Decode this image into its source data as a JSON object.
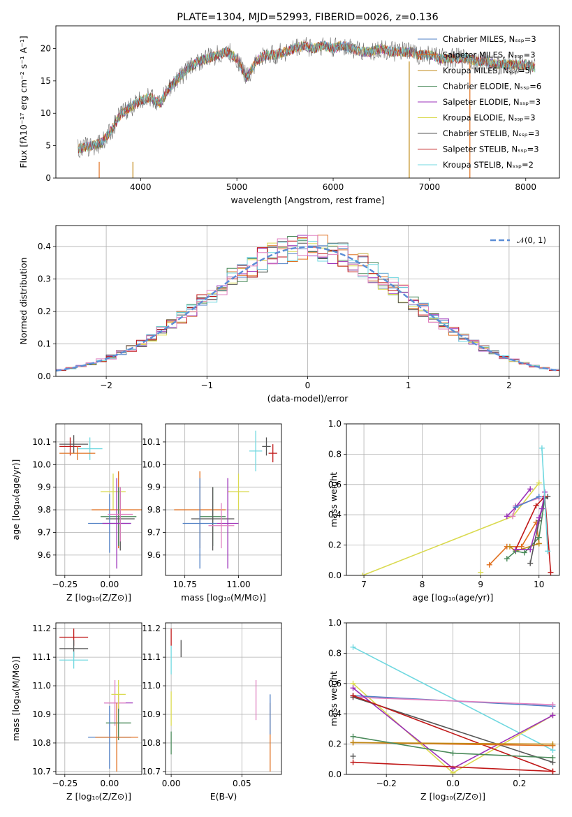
{
  "colors": {
    "Chabrier MILES": "#4f7fc4",
    "Salpeter MILES": "#e07020",
    "Kroupa MILES": "#c08a18",
    "Chabrier ELODIE": "#4a8a5a",
    "Salpeter ELODIE": "#9b30b8",
    "Kroupa ELODIE": "#dada50",
    "Chabrier STELIB": "#555555",
    "Salpeter STELIB": "#c01818",
    "Kroupa STELIB": "#70d8e0",
    "Salpeter MILES 2": "#e07020",
    "pink": "#e080c0",
    "normal": "#5b8dd6"
  },
  "chart_data": [
    {
      "id": "spectrum",
      "type": "line",
      "title": "PLATE=1304, MJD=52993, FIBERID=0026, z=0.136",
      "xlabel": "wavelength [Angstrom, rest frame]",
      "ylabel": "Flux [fλ10⁻¹⁷ erg cm⁻² s⁻¹ A⁻¹]",
      "xlim": [
        3120,
        8350
      ],
      "ylim": [
        0,
        23.5
      ],
      "xticks": [
        4000,
        5000,
        6000,
        7000,
        8000
      ],
      "yticks": [
        0,
        5,
        10,
        15,
        20
      ],
      "xtick_labels": [
        "4000",
        "5000",
        "6000",
        "7000",
        "8000"
      ],
      "ytick_labels": [
        "0",
        "5",
        "10",
        "15",
        "20"
      ],
      "grid": false,
      "legend_position": "top-right",
      "series": [
        {
          "name": "Chabrier MILES, Nₛₛₚ=3",
          "key": "Chabrier MILES"
        },
        {
          "name": "Salpeter MILES, Nₛₛₚ=3",
          "key": "Salpeter MILES"
        },
        {
          "name": "Kroupa MILES, Nₛₛₚ=5",
          "key": "Kroupa MILES"
        },
        {
          "name": "Chabrier ELODIE, Nₛₛₚ=6",
          "key": "Chabrier ELODIE"
        },
        {
          "name": "Salpeter ELODIE, Nₛₛₚ=3",
          "key": "Salpeter ELODIE"
        },
        {
          "name": "Kroupa ELODIE, Nₛₛₚ=3",
          "key": "Kroupa ELODIE"
        },
        {
          "name": "Chabrier STELIB, Nₛₛₚ=3",
          "key": "Chabrier STELIB"
        },
        {
          "name": "Salpeter STELIB, Nₛₛₚ=3",
          "key": "Salpeter STELIB"
        },
        {
          "name": "Kroupa STELIB, Nₛₛₚ=2",
          "key": "Kroupa STELIB"
        }
      ],
      "spectrum_envelope": {
        "x": [
          3350,
          3500,
          3600,
          3700,
          3800,
          3900,
          4000,
          4100,
          4200,
          4300,
          4400,
          4500,
          4600,
          4700,
          4800,
          4900,
          5000,
          5100,
          5200,
          5300,
          5400,
          5500,
          5600,
          5700,
          5800,
          5900,
          6000,
          6100,
          6200,
          6300,
          6400,
          6500,
          6600,
          6700,
          6800,
          6900,
          7000,
          7100,
          7200,
          7300,
          7400,
          7500,
          7600,
          7700,
          7800,
          7900,
          8000,
          8100
        ],
        "y": [
          4.5,
          5.0,
          5.5,
          7.5,
          10.0,
          11.0,
          12.0,
          12.5,
          11.5,
          14.0,
          15.5,
          17.0,
          18.0,
          18.5,
          19.0,
          19.5,
          18.5,
          15.5,
          18.0,
          19.0,
          19.0,
          19.5,
          20.0,
          20.5,
          20.0,
          20.5,
          20.0,
          20.5,
          20.0,
          19.5,
          19.5,
          20.0,
          19.5,
          19.5,
          19.5,
          19.0,
          19.0,
          18.5,
          18.5,
          18.5,
          18.5,
          18.0,
          18.0,
          17.5,
          17.5,
          17.5,
          17.5,
          17.0
        ]
      },
      "drops": [
        {
          "x": 3570,
          "key": "Salpeter MILES",
          "y_from": 2.5,
          "y_to": 0
        },
        {
          "x": 3920,
          "key": "Kroupa MILES",
          "y_from": 2.5,
          "y_to": 0
        },
        {
          "x": 6790,
          "key": "Kroupa MILES",
          "y_from": 18,
          "y_to": 0
        },
        {
          "x": 7420,
          "key": "Salpeter MILES",
          "y_from": 18,
          "y_to": 0
        }
      ]
    },
    {
      "id": "residuals",
      "type": "bar",
      "xlabel": "(data-model)/error",
      "ylabel": "Normed distribution",
      "xlim": [
        -2.5,
        2.5
      ],
      "ylim": [
        0,
        0.465
      ],
      "xticks": [
        -2,
        -1,
        0,
        1,
        2
      ],
      "yticks": [
        0.0,
        0.1,
        0.2,
        0.3,
        0.4
      ],
      "xtick_labels": [
        "−2",
        "−1",
        "0",
        "1",
        "2"
      ],
      "ytick_labels": [
        "0.0",
        "0.1",
        "0.2",
        "0.3",
        "0.4"
      ],
      "grid": true,
      "legend_position": "top-right",
      "legend_label": "𝒩(0, 1)",
      "bin_width": 0.1,
      "histogram_series": [
        "Chabrier MILES",
        "Salpeter MILES",
        "Chabrier ELODIE",
        "Salpeter ELODIE",
        "Kroupa ELODIE",
        "Chabrier STELIB",
        "Salpeter STELIB",
        "Kroupa STELIB",
        "pink"
      ]
    },
    {
      "id": "age-vs-Z",
      "type": "scatter",
      "xlabel": "Z [log₁₀(Z/Z⊙)]",
      "ylabel": "age  [log₁₀(age/yr)]",
      "xlim": [
        -0.3,
        0.18
      ],
      "ylim": [
        9.51,
        10.18
      ],
      "xticks": [
        -0.25,
        0.0
      ],
      "yticks": [
        9.6,
        9.7,
        9.8,
        9.9,
        10.0,
        10.1
      ],
      "xtick_labels": [
        "−0.25",
        "0.00"
      ],
      "ytick_labels": [
        "9.6",
        "9.7",
        "9.8",
        "9.9",
        "10.0",
        "10.1"
      ],
      "grid": true,
      "crosses": [
        {
          "key": "Salpeter STELIB",
          "x": -0.22,
          "xerr": 0.06,
          "y": 10.08,
          "yerr": 0.04
        },
        {
          "key": "Chabrier STELIB",
          "x": -0.2,
          "xerr": 0.08,
          "y": 10.09,
          "yerr": 0.04
        },
        {
          "key": "Kroupa STELIB",
          "x": -0.11,
          "xerr": 0.07,
          "y": 10.07,
          "yerr": 0.05
        },
        {
          "key": "Salpeter MILES",
          "x": -0.18,
          "xerr": 0.1,
          "y": 10.05,
          "yerr": 0.03
        },
        {
          "key": "Kroupa ELODIE",
          "x": 0.02,
          "xerr": 0.07,
          "y": 9.88,
          "yerr": 0.08
        },
        {
          "key": "Salpeter MILES",
          "x": 0.05,
          "xerr": 0.15,
          "y": 9.8,
          "yerr": 0.17
        },
        {
          "key": "Chabrier ELODIE",
          "x": 0.05,
          "xerr": 0.1,
          "y": 9.77,
          "yerr": 0.13
        },
        {
          "key": "Chabrier STELIB",
          "x": 0.06,
          "xerr": 0.08,
          "y": 9.76,
          "yerr": 0.14
        },
        {
          "key": "Chabrier MILES",
          "x": 0.0,
          "xerr": 0.12,
          "y": 9.74,
          "yerr": 0.13
        },
        {
          "key": "Salpeter ELODIE",
          "x": 0.04,
          "xerr": 0.08,
          "y": 9.74,
          "yerr": 0.2
        },
        {
          "key": "pink",
          "x": 0.06,
          "xerr": 0.07,
          "y": 9.78,
          "yerr": 0.12
        }
      ]
    },
    {
      "id": "age-vs-mass",
      "type": "scatter",
      "xlabel": "mass [log₁₀(M/M⊙)]",
      "ylabel": "",
      "xlim": [
        10.66,
        11.2
      ],
      "ylim": [
        9.51,
        10.18
      ],
      "xticks": [
        10.75,
        11.0
      ],
      "yticks": [
        9.6,
        9.7,
        9.8,
        9.9,
        10.0,
        10.1
      ],
      "xtick_labels": [
        "10.75",
        "11.00"
      ],
      "ytick_labels": [
        "9.6",
        "9.7",
        "9.8",
        "9.9",
        "10.0",
        "10.1"
      ],
      "grid": true,
      "crosses": [
        {
          "key": "Salpeter STELIB",
          "x": 11.16,
          "xerr": 0.02,
          "y": 10.05,
          "yerr": 0.04
        },
        {
          "key": "Chabrier STELIB",
          "x": 11.13,
          "xerr": 0.02,
          "y": 10.08,
          "yerr": 0.04
        },
        {
          "key": "Kroupa STELIB",
          "x": 11.08,
          "xerr": 0.03,
          "y": 10.06,
          "yerr": 0.09
        },
        {
          "key": "Kroupa ELODIE",
          "x": 11.0,
          "xerr": 0.05,
          "y": 9.88,
          "yerr": 0.08
        },
        {
          "key": "Salpeter MILES",
          "x": 10.82,
          "xerr": 0.12,
          "y": 9.8,
          "yerr": 0.17
        },
        {
          "key": "Chabrier ELODIE",
          "x": 10.88,
          "xerr": 0.06,
          "y": 9.77,
          "yerr": 0.13
        },
        {
          "key": "Chabrier STELIB",
          "x": 10.88,
          "xerr": 0.1,
          "y": 9.76,
          "yerr": 0.14
        },
        {
          "key": "Chabrier MILES",
          "x": 10.82,
          "xerr": 0.08,
          "y": 9.74,
          "yerr": 0.2
        },
        {
          "key": "Salpeter ELODIE",
          "x": 10.95,
          "xerr": 0.05,
          "y": 9.74,
          "yerr": 0.2
        },
        {
          "key": "pink",
          "x": 10.92,
          "xerr": 0.06,
          "y": 9.73,
          "yerr": 0.1
        }
      ]
    },
    {
      "id": "weight-vs-age",
      "type": "line",
      "xlabel": "age  [log₁₀(age/yr)]",
      "ylabel": "mass weight",
      "xlim": [
        6.7,
        10.35
      ],
      "ylim": [
        0,
        1.0
      ],
      "xticks": [
        7,
        8,
        9,
        10
      ],
      "yticks": [
        0.0,
        0.2,
        0.4,
        0.6,
        0.8,
        1.0
      ],
      "xtick_labels": [
        "7",
        "8",
        "9",
        "10"
      ],
      "ytick_labels": [
        "0.0",
        "0.2",
        "0.4",
        "0.6",
        "0.8",
        "1.0"
      ],
      "grid": true,
      "series": [
        {
          "key": "Kroupa ELODIE",
          "x": [
            6.98,
            9.55,
            10.0
          ],
          "y": [
            0.0,
            0.39,
            0.61
          ]
        },
        {
          "key": "pink",
          "x": [
            9.55,
            9.6,
            10.0
          ],
          "y": [
            0.39,
            0.46,
            0.51
          ]
        },
        {
          "key": "Salpeter ELODIE",
          "x": [
            9.45,
            9.6,
            9.85
          ],
          "y": [
            0.39,
            0.45,
            0.57
          ]
        },
        {
          "key": "Chabrier MILES",
          "x": [
            9.6,
            10.0
          ],
          "y": [
            0.45,
            0.52
          ]
        },
        {
          "key": "Salpeter MILES",
          "x": [
            9.15,
            9.45,
            9.7,
            9.95,
            10.0
          ],
          "y": [
            0.07,
            0.19,
            0.19,
            0.35,
            0.21
          ]
        },
        {
          "key": "Kroupa MILES",
          "x": [
            9.5,
            9.6,
            10.0
          ],
          "y": [
            0.19,
            0.16,
            0.21
          ]
        },
        {
          "key": "Chabrier ELODIE",
          "x": [
            9.45,
            9.6,
            9.75,
            10.0,
            10.1
          ],
          "y": [
            0.11,
            0.16,
            0.15,
            0.25,
            0.51
          ]
        },
        {
          "key": "Chabrier STELIB",
          "x": [
            9.85,
            10.0,
            10.1,
            10.15
          ],
          "y": [
            0.08,
            0.36,
            0.51,
            0.52
          ]
        },
        {
          "key": "Salpeter STELIB",
          "x": [
            9.6,
            9.95,
            10.1,
            10.2
          ],
          "y": [
            0.17,
            0.46,
            0.52,
            0.02
          ]
        },
        {
          "key": "Salpeter ELODIE",
          "x": [
            9.6,
            9.85,
            10.0,
            10.05,
            10.1
          ],
          "y": [
            0.17,
            0.17,
            0.38,
            0.44,
            0.55
          ]
        },
        {
          "key": "Kroupa STELIB",
          "x": [
            10.05,
            10.15
          ],
          "y": [
            0.84,
            0.16
          ]
        },
        {
          "key": "Kroupa ELODIE",
          "x": [
            9.0
          ],
          "y": [
            0.02
          ]
        }
      ]
    },
    {
      "id": "mass-vs-Z",
      "type": "scatter",
      "xlabel": "Z [log₁₀(Z/Z⊙)]",
      "ylabel": "mass [log₁₀(M/M⊙)]",
      "xlim": [
        -0.3,
        0.18
      ],
      "ylim": [
        10.69,
        11.22
      ],
      "xticks": [
        -0.25,
        0.0
      ],
      "yticks": [
        10.7,
        10.8,
        10.9,
        11.0,
        11.1,
        11.2
      ],
      "xtick_labels": [
        "−0.25",
        "0.00"
      ],
      "ytick_labels": [
        "10.7",
        "10.8",
        "10.9",
        "11.0",
        "11.1",
        "11.2"
      ],
      "grid": true,
      "crosses": [
        {
          "key": "Salpeter STELIB",
          "x": -0.2,
          "xerr": 0.08,
          "y": 11.17,
          "yerr": 0.03
        },
        {
          "key": "Chabrier STELIB",
          "x": -0.2,
          "xerr": 0.08,
          "y": 11.13,
          "yerr": 0.03
        },
        {
          "key": "Kroupa STELIB",
          "x": -0.2,
          "xerr": 0.08,
          "y": 11.09,
          "yerr": 0.03
        },
        {
          "key": "Salpeter ELODIE",
          "x": 0.05,
          "xerr": 0.08,
          "y": 10.94,
          "yerr": 0.03
        },
        {
          "key": "pink",
          "x": 0.03,
          "xerr": 0.06,
          "y": 10.94,
          "yerr": 0.08
        },
        {
          "key": "Chabrier ELODIE",
          "x": 0.05,
          "xerr": 0.07,
          "y": 10.87,
          "yerr": 0.06
        },
        {
          "key": "Chabrier MILES",
          "x": 0.0,
          "xerr": 0.12,
          "y": 10.82,
          "yerr": 0.11
        },
        {
          "key": "Salpeter MILES",
          "x": 0.04,
          "xerr": 0.12,
          "y": 10.82,
          "yerr": 0.12
        },
        {
          "key": "Kroupa ELODIE",
          "x": 0.05,
          "xerr": 0.04,
          "y": 10.97,
          "yerr": 0.05
        }
      ]
    },
    {
      "id": "mass-vs-EBV",
      "type": "scatter",
      "xlabel": "E(B-V)",
      "ylabel": "",
      "xlim": [
        -0.004,
        0.078
      ],
      "ylim": [
        10.69,
        11.22
      ],
      "xticks": [
        0.0,
        0.05
      ],
      "yticks": [
        10.7,
        10.8,
        10.9,
        11.0,
        11.1,
        11.2
      ],
      "xtick_labels": [
        "0.00",
        "0.05"
      ],
      "ytick_labels": [
        "10.7",
        "10.8",
        "10.9",
        "11.0",
        "11.1",
        "11.2"
      ],
      "grid": true,
      "crosses": [
        {
          "key": "Salpeter STELIB",
          "x": 0.0,
          "xerr": 0.0,
          "y": 11.17,
          "yerr": 0.03
        },
        {
          "key": "Chabrier STELIB",
          "x": 0.007,
          "xerr": 0.0,
          "y": 11.13,
          "yerr": 0.03
        },
        {
          "key": "Kroupa STELIB",
          "x": 0.0,
          "xerr": 0.0,
          "y": 11.09,
          "yerr": 0.05
        },
        {
          "key": "Kroupa ELODIE",
          "x": 0.0,
          "xerr": 0.0,
          "y": 10.92,
          "yerr": 0.06
        },
        {
          "key": "Chabrier ELODIE",
          "x": 0.0,
          "xerr": 0.0,
          "y": 10.8,
          "yerr": 0.04
        },
        {
          "key": "pink",
          "x": 0.06,
          "xerr": 0.0,
          "y": 10.95,
          "yerr": 0.07
        },
        {
          "key": "Salpeter MILES",
          "x": 0.07,
          "xerr": 0.0,
          "y": 10.82,
          "yerr": 0.12
        },
        {
          "key": "Chabrier MILES",
          "x": 0.07,
          "xerr": 0.0,
          "y": 10.9,
          "yerr": 0.07
        }
      ]
    },
    {
      "id": "weight-vs-Z",
      "type": "line",
      "xlabel": "Z [log₁₀(Z/Z⊙)]",
      "ylabel": "mass weight",
      "xlim": [
        -0.32,
        0.32
      ],
      "ylim": [
        0,
        1.0
      ],
      "xticks": [
        -0.2,
        0.0,
        0.2
      ],
      "yticks": [
        0.0,
        0.2,
        0.4,
        0.6,
        0.8,
        1.0
      ],
      "xtick_labels": [
        "−0.2",
        "0.0",
        "0.2"
      ],
      "ytick_labels": [
        "0.0",
        "0.2",
        "0.4",
        "0.6",
        "0.8",
        "1.0"
      ],
      "grid": true,
      "series": [
        {
          "key": "Kroupa STELIB",
          "x": [
            -0.3,
            0.3
          ],
          "y": [
            0.84,
            0.16
          ]
        },
        {
          "key": "Kroupa ELODIE",
          "x": [
            -0.3,
            0.0,
            0.3
          ],
          "y": [
            0.6,
            0.01,
            0.39
          ]
        },
        {
          "key": "Chabrier MILES",
          "x": [
            -0.3,
            0.3
          ],
          "y": [
            0.52,
            0.45
          ]
        },
        {
          "key": "pink",
          "x": [
            -0.3,
            0.3
          ],
          "y": [
            0.51,
            0.46
          ]
        },
        {
          "key": "Salpeter ELODIE",
          "x": [
            -0.3,
            0.0,
            0.3
          ],
          "y": [
            0.57,
            0.04,
            0.39
          ]
        },
        {
          "key": "Chabrier STELIB",
          "x": [
            -0.3,
            0.3
          ],
          "y": [
            0.51,
            0.08
          ]
        },
        {
          "key": "Salpeter STELIB",
          "x": [
            -0.3,
            0.3
          ],
          "y": [
            0.52,
            0.02
          ]
        },
        {
          "key": "Salpeter MILES",
          "x": [
            -0.3,
            0.3
          ],
          "y": [
            0.21,
            0.19
          ]
        },
        {
          "key": "Kroupa MILES",
          "x": [
            -0.3,
            0.3
          ],
          "y": [
            0.21,
            0.2
          ]
        },
        {
          "key": "Chabrier ELODIE",
          "x": [
            -0.3,
            0.0,
            0.3
          ],
          "y": [
            0.25,
            0.14,
            0.11
          ]
        },
        {
          "key": "Chabrier STELIB",
          "x": [
            -0.3
          ],
          "y": [
            0.12
          ]
        },
        {
          "key": "Salpeter STELIB",
          "x": [
            -0.3,
            0.3
          ],
          "y": [
            0.08,
            0.02
          ]
        }
      ]
    }
  ]
}
